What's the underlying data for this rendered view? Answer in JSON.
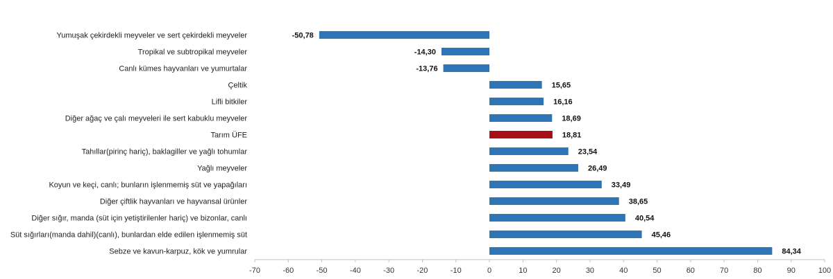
{
  "chart_data": {
    "type": "bar",
    "orientation": "horizontal",
    "categories": [
      "Yumuşak çekirdekli meyveler ve sert çekirdekli meyveler",
      "Tropikal ve subtropikal meyveler",
      "Canlı kümes hayvanları ve yumurtalar",
      "Çeltik",
      "Lifli bitkiler",
      "Diğer ağaç ve çalı meyveleri ile sert kabuklu meyveler",
      "Tarım ÜFE",
      "Tahıllar(pirinç hariç), baklagiller ve yağlı tohumlar",
      "Yağlı meyveler",
      "Koyun ve keçi, canlı; bunların işlenmemiş süt ve yapağıları",
      "Diğer çiftlik hayvanları ve hayvansal ürünler",
      "Diğer sığır, manda (süt için yetiştirilenler hariç) ve bizonlar, canlı",
      "Süt sığırları(manda dahil)(canlı), bunlardan elde edilen işlenmemiş süt",
      "Sebze ve kavun-karpuz, kök ve yumrular"
    ],
    "values": [
      -50.78,
      -14.3,
      -13.76,
      15.65,
      16.16,
      18.69,
      18.81,
      23.54,
      26.49,
      33.49,
      38.65,
      40.54,
      45.46,
      84.34
    ],
    "value_labels": [
      "-50,78",
      "-14,30",
      "-13,76",
      "15,65",
      "16,16",
      "18,69",
      "18,81",
      "23,54",
      "26,49",
      "33,49",
      "38,65",
      "40,54",
      "45,46",
      "84,34"
    ],
    "highlight_index": 6,
    "colors": {
      "default": "#2e75b6",
      "highlight": "#a50f15"
    },
    "xlim": [
      -70,
      100
    ],
    "xticks": [
      -70,
      -60,
      -50,
      -40,
      -30,
      -20,
      -10,
      0,
      10,
      20,
      30,
      40,
      50,
      60,
      70,
      80,
      90,
      100
    ],
    "title": "",
    "xlabel": "",
    "ylabel": "",
    "grid": false,
    "legend": "none"
  }
}
